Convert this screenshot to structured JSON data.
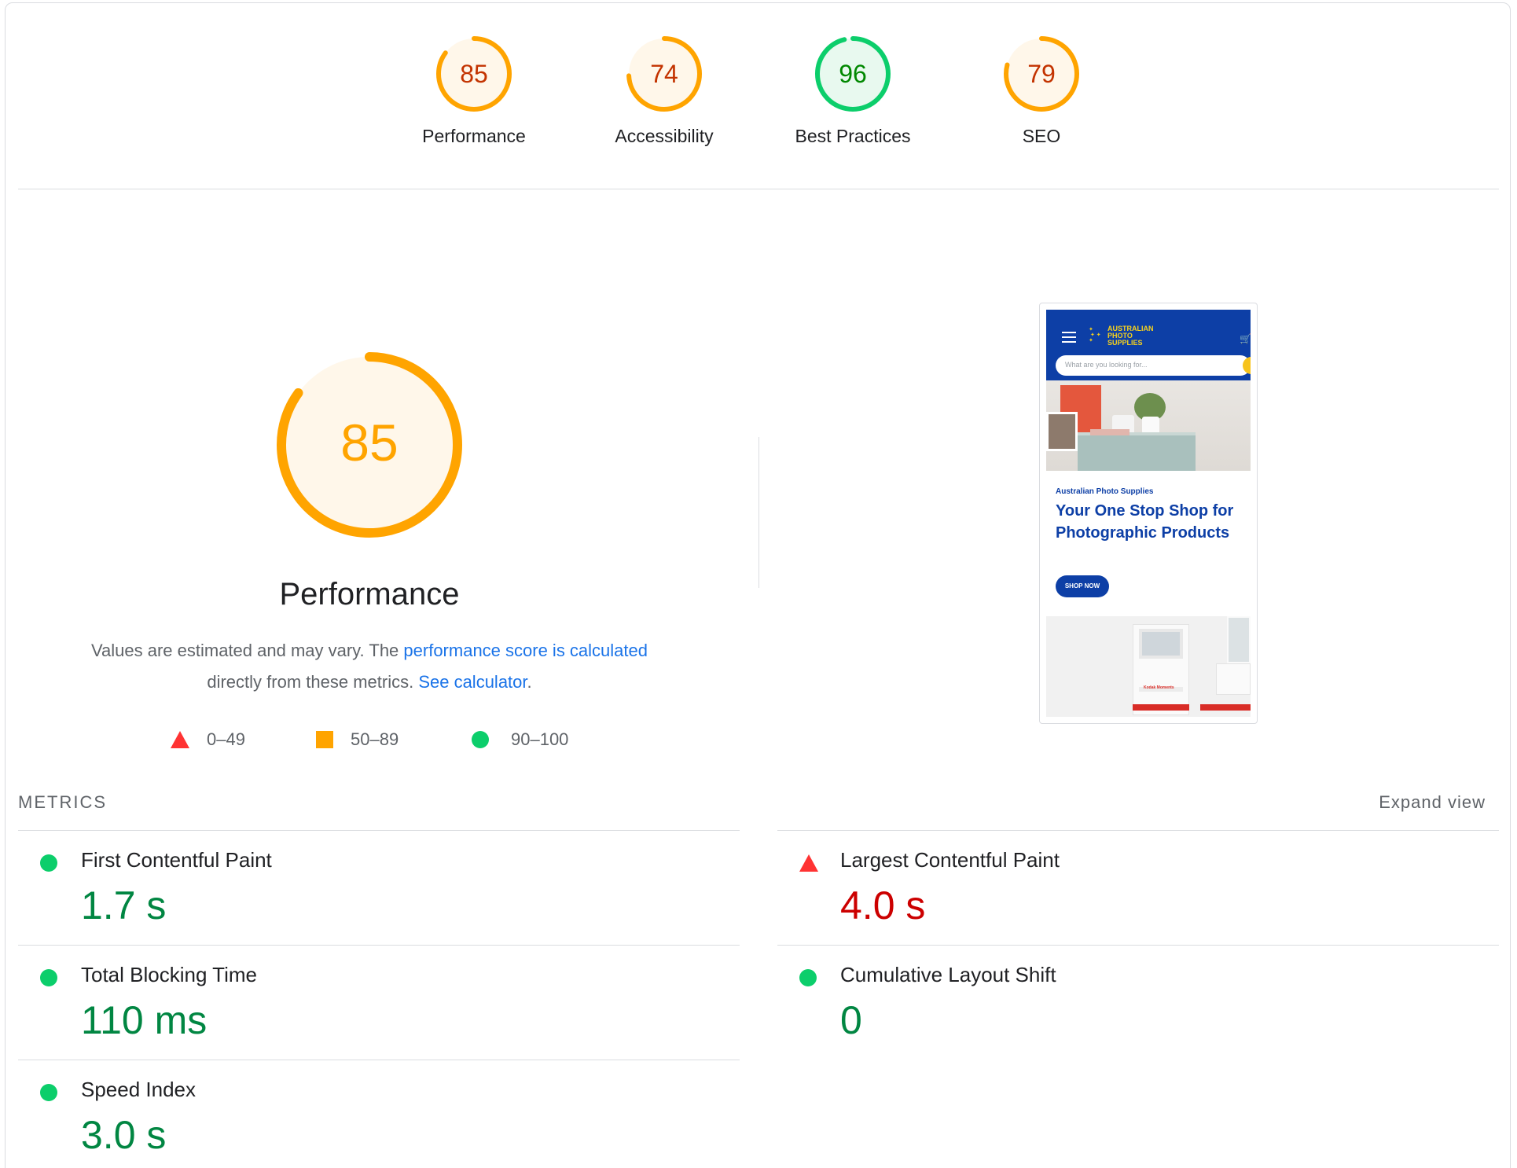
{
  "categories": [
    {
      "score": "85",
      "label": "Performance",
      "value": 85,
      "color": "#ffa400",
      "text_color": "#c33300",
      "bg": "#fff7ea"
    },
    {
      "score": "74",
      "label": "Accessibility",
      "value": 74,
      "color": "#ffa400",
      "text_color": "#c33300",
      "bg": "#fff7ea"
    },
    {
      "score": "96",
      "label": "Best Practices",
      "value": 96,
      "color": "#0cce6b",
      "text_color": "#008800",
      "bg": "#e8f9ef"
    },
    {
      "score": "79",
      "label": "SEO",
      "value": 79,
      "color": "#ffa400",
      "text_color": "#c33300",
      "bg": "#fff7ea"
    }
  ],
  "main": {
    "score": "85",
    "value": 85,
    "title": "Performance",
    "desc_prefix": "Values are estimated and may vary. The ",
    "desc_link1": "performance score is calculated",
    "desc_middle": " directly from these metrics. ",
    "desc_link2": "See calculator",
    "desc_suffix": "."
  },
  "legend": {
    "fail": "0–49",
    "average": "50–89",
    "pass": "90–100"
  },
  "thumbnail": {
    "logo_line1": "AUSTRALIAN",
    "logo_line2": "PHOTO",
    "logo_line3": "SUPPLIES",
    "search_placeholder": "What are you looking for...",
    "subtitle": "Australian Photo Supplies",
    "headline": "Your One Stop Shop for Photographic Products",
    "button": "SHOP NOW",
    "kiosk_brand": "Kodak Moments"
  },
  "metrics": {
    "section_label": "METRICS",
    "expand_label": "Expand view",
    "items": [
      {
        "name": "First Contentful Paint",
        "value": "1.7 s",
        "status": "pass"
      },
      {
        "name": "Largest Contentful Paint",
        "value": "4.0 s",
        "status": "fail"
      },
      {
        "name": "Total Blocking Time",
        "value": "110 ms",
        "status": "pass"
      },
      {
        "name": "Cumulative Layout Shift",
        "value": "0",
        "status": "pass"
      },
      {
        "name": "Speed Index",
        "value": "3.0 s",
        "status": "pass"
      }
    ]
  },
  "colors": {
    "pass": "#0cce6b",
    "average": "#ffa400",
    "fail": "#ff3333",
    "link": "#1a73e8"
  }
}
